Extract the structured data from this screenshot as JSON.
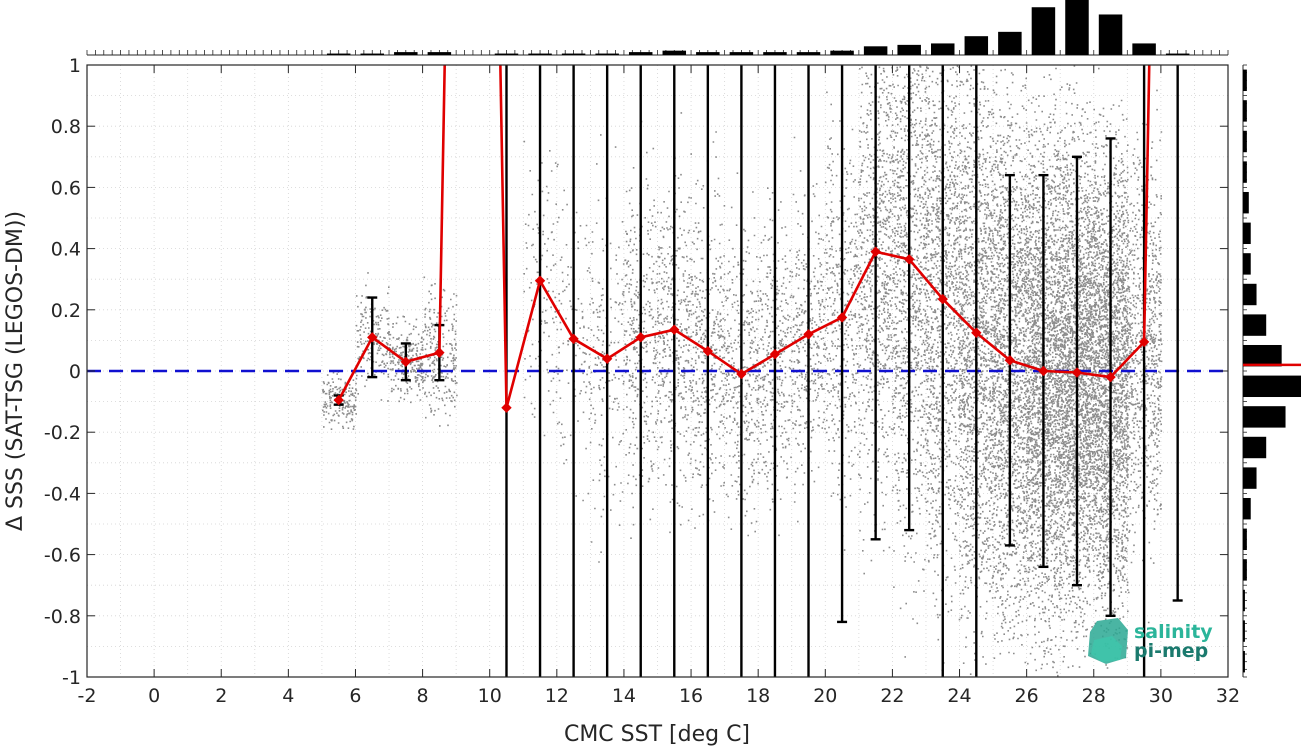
{
  "chart_data": {
    "type": "scatter",
    "title": "",
    "xlabel": "CMC SST [deg C]",
    "ylabel": "Δ SSS (SAT-TSG (LEGOS-DM))",
    "xlim": [
      -2,
      32
    ],
    "ylim": [
      -1,
      1
    ],
    "xticks": [
      "-2",
      "0",
      "2",
      "4",
      "6",
      "8",
      "10",
      "12",
      "14",
      "16",
      "18",
      "20",
      "22",
      "24",
      "26",
      "28",
      "30",
      "32"
    ],
    "yticks": [
      "-1",
      "-0.8",
      "-0.6",
      "-0.4",
      "-0.2",
      "0",
      "0.2",
      "0.4",
      "0.6",
      "0.8",
      "1"
    ],
    "grid": true,
    "reference_line": {
      "y": 0,
      "color": "#1010d0",
      "style": "dashed"
    },
    "scatter_color": "#808080",
    "mean_line_color": "#e00000",
    "series": [
      {
        "name": "",
        "x": [
          5.5,
          6.5,
          7.5,
          8.5,
          9.5,
          10.5,
          11.5,
          12.5,
          13.5,
          14.5,
          15.5,
          16.5,
          17.5,
          18.5,
          19.5,
          20.5,
          21.5,
          22.5,
          23.5,
          24.5,
          25.5,
          26.5,
          27.5,
          28.5,
          29.5,
          30.5
        ],
        "y": [
          -0.095,
          0.11,
          0.03,
          0.06,
          null,
          -0.12,
          0.295,
          0.105,
          0.04,
          0.11,
          0.135,
          0.065,
          -0.01,
          0.055,
          0.12,
          0.175,
          0.39,
          0.365,
          0.235,
          0.125,
          0.035,
          0.0,
          -0.005,
          -0.02,
          0.095,
          null
        ],
        "err_low": [
          -0.11,
          -0.02,
          -0.03,
          -0.03,
          null,
          -1.0,
          -1.0,
          -1.0,
          -1.0,
          -1.0,
          -1.0,
          -1.0,
          -1.0,
          -1.0,
          -1.0,
          -0.82,
          -0.55,
          -0.52,
          -1.0,
          -1.0,
          -0.57,
          -0.64,
          -0.7,
          -0.8,
          -1.0,
          -0.75
        ],
        "err_high": [
          -0.08,
          0.24,
          0.09,
          0.15,
          null,
          1.0,
          1.0,
          1.0,
          1.0,
          1.0,
          1.0,
          1.0,
          1.0,
          1.0,
          1.0,
          1.0,
          1.0,
          1.0,
          1.0,
          1.0,
          0.64,
          0.64,
          0.7,
          0.76,
          1.0,
          1.0
        ]
      }
    ],
    "top_histogram": {
      "bin_centers": [
        5.5,
        6.5,
        7.5,
        8.5,
        10.5,
        11.5,
        12.5,
        13.5,
        14.5,
        15.5,
        16.5,
        17.5,
        18.5,
        19.5,
        20.5,
        21.5,
        22.5,
        23.5,
        24.5,
        25.5,
        26.5,
        27.5,
        28.5,
        29.5,
        30.5
      ],
      "counts": [
        1,
        1,
        2,
        2,
        1,
        1,
        1,
        1,
        2,
        3,
        2,
        2,
        2,
        2,
        3,
        6,
        7,
        8,
        13,
        16,
        33,
        38,
        28,
        8,
        1
      ]
    },
    "right_histogram": {
      "bin_centers": [
        -0.95,
        -0.85,
        -0.75,
        -0.65,
        -0.55,
        -0.45,
        -0.35,
        -0.25,
        -0.15,
        -0.05,
        0.05,
        0.15,
        0.25,
        0.35,
        0.45,
        0.55,
        0.65,
        0.75,
        0.85,
        0.95
      ],
      "counts": [
        1,
        1,
        1,
        2,
        2,
        4,
        7,
        12,
        22,
        30,
        20,
        12,
        7,
        4,
        4,
        3,
        2,
        2,
        2,
        2
      ],
      "median_marker_color": "#e00000"
    }
  },
  "logo": {
    "line1": "salinity",
    "line2": "pi-mep"
  }
}
